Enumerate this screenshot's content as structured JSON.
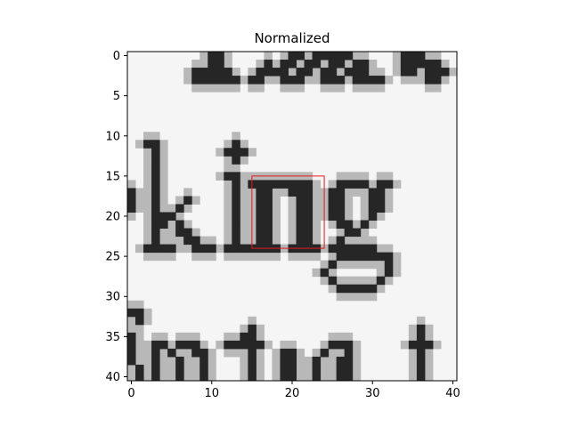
{
  "chart_data": {
    "type": "heatmap",
    "title": "Normalized",
    "colormap": "gray_r",
    "xlim": [
      -0.5,
      40.5
    ],
    "ylim": [
      40.5,
      -0.5
    ],
    "grid": false,
    "xticks": [
      0,
      10,
      20,
      30,
      40
    ],
    "yticks": [
      0,
      5,
      10,
      15,
      20,
      25,
      30,
      35,
      40
    ],
    "image": {
      "rows": 41,
      "cols": 41,
      "description_content": "grayscale crop of text showing the word 'king' with partial text lines above and below",
      "dark_cells": [
        [
          0,
          10
        ],
        [
          0,
          11
        ],
        [
          0,
          20
        ],
        [
          0,
          21
        ],
        [
          0,
          23
        ],
        [
          0,
          24
        ],
        [
          0,
          25
        ],
        [
          0,
          26
        ],
        [
          0,
          27
        ],
        [
          0,
          34
        ],
        [
          0,
          35
        ],
        [
          0,
          36
        ],
        [
          1,
          10
        ],
        [
          1,
          11
        ],
        [
          1,
          17
        ],
        [
          1,
          19
        ],
        [
          1,
          20
        ],
        [
          1,
          22
        ],
        [
          1,
          23
        ],
        [
          1,
          25
        ],
        [
          1,
          26
        ],
        [
          1,
          28
        ],
        [
          1,
          29
        ],
        [
          1,
          34
        ],
        [
          1,
          35
        ],
        [
          1,
          36
        ],
        [
          1,
          37
        ],
        [
          1,
          38
        ],
        [
          2,
          8
        ],
        [
          2,
          9
        ],
        [
          2,
          10
        ],
        [
          2,
          11
        ],
        [
          2,
          12
        ],
        [
          2,
          16
        ],
        [
          2,
          17
        ],
        [
          2,
          18
        ],
        [
          2,
          19
        ],
        [
          2,
          21
        ],
        [
          2,
          22
        ],
        [
          2,
          24
        ],
        [
          2,
          25
        ],
        [
          2,
          27
        ],
        [
          2,
          28
        ],
        [
          2,
          29
        ],
        [
          2,
          34
        ],
        [
          2,
          35
        ],
        [
          2,
          37
        ],
        [
          2,
          38
        ],
        [
          2,
          39
        ],
        [
          3,
          8
        ],
        [
          3,
          9
        ],
        [
          3,
          10
        ],
        [
          3,
          11
        ],
        [
          3,
          12
        ],
        [
          3,
          13
        ],
        [
          3,
          15
        ],
        [
          3,
          16
        ],
        [
          3,
          19
        ],
        [
          3,
          20
        ],
        [
          3,
          21
        ],
        [
          3,
          24
        ],
        [
          3,
          25
        ],
        [
          3,
          26
        ],
        [
          3,
          28
        ],
        [
          3,
          29
        ],
        [
          3,
          30
        ],
        [
          3,
          31
        ],
        [
          3,
          37
        ],
        [
          3,
          38
        ],
        [
          11,
          2
        ],
        [
          11,
          3
        ],
        [
          11,
          13
        ],
        [
          12,
          3
        ],
        [
          12,
          12
        ],
        [
          12,
          13
        ],
        [
          12,
          14
        ],
        [
          13,
          3
        ],
        [
          13,
          13
        ],
        [
          14,
          3
        ],
        [
          15,
          3
        ],
        [
          15,
          12
        ],
        [
          15,
          13
        ],
        [
          16,
          3
        ],
        [
          16,
          13
        ],
        [
          16,
          15
        ],
        [
          16,
          16
        ],
        [
          16,
          17
        ],
        [
          16,
          18
        ],
        [
          16,
          19
        ],
        [
          16,
          20
        ],
        [
          16,
          21
        ],
        [
          16,
          22
        ],
        [
          16,
          26
        ],
        [
          16,
          27
        ],
        [
          16,
          28
        ],
        [
          16,
          29
        ],
        [
          16,
          31
        ],
        [
          16,
          32
        ],
        [
          17,
          0
        ],
        [
          17,
          3
        ],
        [
          17,
          13
        ],
        [
          17,
          16
        ],
        [
          17,
          17
        ],
        [
          17,
          20
        ],
        [
          17,
          21
        ],
        [
          17,
          22
        ],
        [
          17,
          25
        ],
        [
          17,
          26
        ],
        [
          17,
          30
        ],
        [
          17,
          31
        ],
        [
          18,
          0
        ],
        [
          18,
          3
        ],
        [
          18,
          7
        ],
        [
          18,
          13
        ],
        [
          18,
          16
        ],
        [
          18,
          17
        ],
        [
          18,
          21
        ],
        [
          18,
          22
        ],
        [
          18,
          25
        ],
        [
          18,
          26
        ],
        [
          18,
          30
        ],
        [
          18,
          31
        ],
        [
          19,
          0
        ],
        [
          19,
          3
        ],
        [
          19,
          6
        ],
        [
          19,
          13
        ],
        [
          19,
          16
        ],
        [
          19,
          17
        ],
        [
          19,
          21
        ],
        [
          19,
          22
        ],
        [
          19,
          25
        ],
        [
          19,
          26
        ],
        [
          19,
          30
        ],
        [
          19,
          31
        ],
        [
          20,
          3
        ],
        [
          20,
          4
        ],
        [
          20,
          5
        ],
        [
          20,
          13
        ],
        [
          20,
          16
        ],
        [
          20,
          17
        ],
        [
          20,
          21
        ],
        [
          20,
          22
        ],
        [
          20,
          25
        ],
        [
          20,
          26
        ],
        [
          20,
          30
        ],
        [
          21,
          3
        ],
        [
          21,
          4
        ],
        [
          21,
          6
        ],
        [
          21,
          13
        ],
        [
          21,
          16
        ],
        [
          21,
          17
        ],
        [
          21,
          21
        ],
        [
          21,
          22
        ],
        [
          21,
          26
        ],
        [
          21,
          27
        ],
        [
          21,
          29
        ],
        [
          22,
          3
        ],
        [
          22,
          6
        ],
        [
          22,
          7
        ],
        [
          22,
          13
        ],
        [
          22,
          16
        ],
        [
          22,
          17
        ],
        [
          22,
          21
        ],
        [
          22,
          22
        ],
        [
          22,
          27
        ],
        [
          22,
          28
        ],
        [
          23,
          3
        ],
        [
          23,
          7
        ],
        [
          23,
          8
        ],
        [
          23,
          13
        ],
        [
          23,
          16
        ],
        [
          23,
          17
        ],
        [
          23,
          21
        ],
        [
          23,
          22
        ],
        [
          23,
          26
        ],
        [
          24,
          2
        ],
        [
          24,
          3
        ],
        [
          24,
          4
        ],
        [
          24,
          5
        ],
        [
          24,
          8
        ],
        [
          24,
          9
        ],
        [
          24,
          10
        ],
        [
          24,
          12
        ],
        [
          24,
          13
        ],
        [
          24,
          14
        ],
        [
          24,
          15
        ],
        [
          24,
          16
        ],
        [
          24,
          17
        ],
        [
          24,
          18
        ],
        [
          24,
          20
        ],
        [
          24,
          21
        ],
        [
          24,
          22
        ],
        [
          24,
          23
        ],
        [
          24,
          25
        ],
        [
          24,
          26
        ],
        [
          24,
          27
        ],
        [
          24,
          28
        ],
        [
          24,
          29
        ],
        [
          24,
          30
        ],
        [
          25,
          26
        ],
        [
          25,
          27
        ],
        [
          25,
          28
        ],
        [
          25,
          29
        ],
        [
          25,
          30
        ],
        [
          25,
          31
        ],
        [
          25,
          32
        ],
        [
          26,
          25
        ],
        [
          26,
          32
        ],
        [
          27,
          24
        ],
        [
          27,
          32
        ],
        [
          28,
          25
        ],
        [
          28,
          31
        ],
        [
          29,
          26
        ],
        [
          29,
          27
        ],
        [
          29,
          28
        ],
        [
          29,
          29
        ],
        [
          29,
          30
        ],
        [
          32,
          0
        ],
        [
          32,
          1
        ],
        [
          33,
          1
        ],
        [
          34,
          15
        ],
        [
          34,
          36
        ],
        [
          35,
          0
        ],
        [
          35,
          14
        ],
        [
          35,
          15
        ],
        [
          35,
          36
        ],
        [
          36,
          0
        ],
        [
          36,
          3
        ],
        [
          36,
          4
        ],
        [
          36,
          6
        ],
        [
          36,
          7
        ],
        [
          36,
          8
        ],
        [
          36,
          12
        ],
        [
          36,
          13
        ],
        [
          36,
          14
        ],
        [
          36,
          15
        ],
        [
          36,
          16
        ],
        [
          36,
          25
        ],
        [
          36,
          26
        ],
        [
          36,
          27
        ],
        [
          36,
          35
        ],
        [
          36,
          36
        ],
        [
          36,
          37
        ],
        [
          37,
          0
        ],
        [
          37,
          3
        ],
        [
          37,
          5
        ],
        [
          37,
          8
        ],
        [
          37,
          9
        ],
        [
          37,
          15
        ],
        [
          37,
          19
        ],
        [
          37,
          20
        ],
        [
          37,
          24
        ],
        [
          37,
          27
        ],
        [
          37,
          36
        ],
        [
          38,
          0
        ],
        [
          38,
          3
        ],
        [
          38,
          6
        ],
        [
          38,
          9
        ],
        [
          38,
          15
        ],
        [
          38,
          19
        ],
        [
          38,
          20
        ],
        [
          38,
          23
        ],
        [
          38,
          26
        ],
        [
          38,
          27
        ],
        [
          38,
          36
        ],
        [
          39,
          1
        ],
        [
          39,
          3
        ],
        [
          39,
          6
        ],
        [
          39,
          9
        ],
        [
          39,
          15
        ],
        [
          39,
          19
        ],
        [
          39,
          20
        ],
        [
          39,
          23
        ],
        [
          39,
          26
        ],
        [
          39,
          27
        ],
        [
          39,
          36
        ],
        [
          40,
          1
        ],
        [
          40,
          3
        ],
        [
          40,
          6
        ],
        [
          40,
          9
        ],
        [
          40,
          15
        ],
        [
          40,
          19
        ],
        [
          40,
          20
        ],
        [
          40,
          23
        ],
        [
          40,
          26
        ],
        [
          40,
          27
        ],
        [
          40,
          36
        ]
      ]
    },
    "annotation": {
      "shape": "rectangle",
      "color": "#e31a1c",
      "x_range": [
        15,
        24
      ],
      "y_range": [
        15,
        24
      ]
    }
  }
}
